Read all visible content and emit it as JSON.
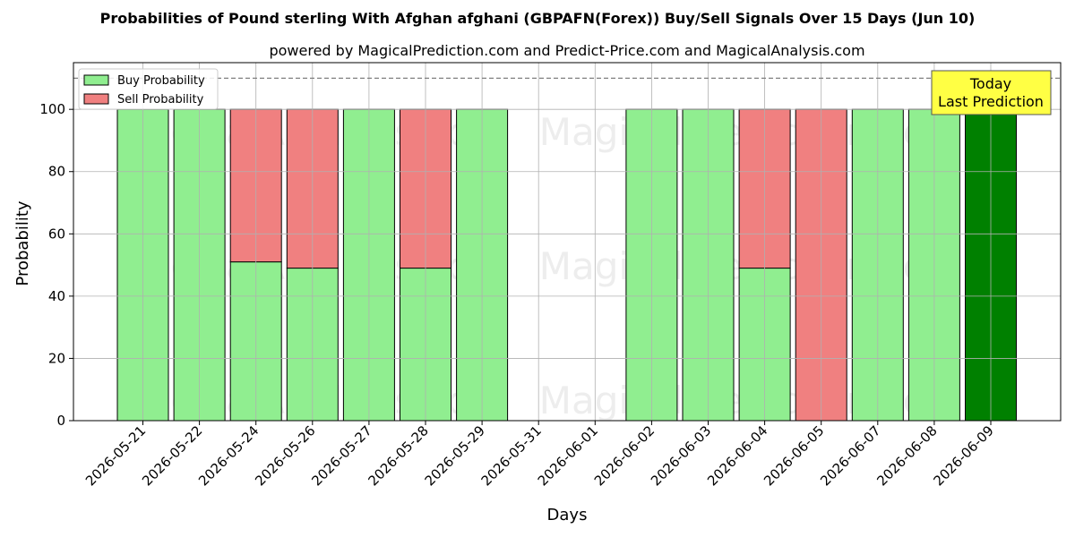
{
  "chart_data": {
    "type": "bar",
    "stacked": true,
    "title": "Probabilities of Pound sterling With Afghan afghani (GBPAFN(Forex)) Buy/Sell Signals Over 15 Days (Jun 10)",
    "subtitle": "powered by MagicalPrediction.com and Predict-Price.com and MagicalAnalysis.com",
    "xlabel": "Days",
    "ylabel": "Probability",
    "ylim": [
      0,
      115
    ],
    "yticks": [
      0,
      20,
      40,
      60,
      80,
      100
    ],
    "reference_line": 110,
    "grid": true,
    "legend_position": "top-left",
    "categories": [
      "2026-05-21",
      "2026-05-22",
      "2026-05-24",
      "2026-05-26",
      "2026-05-27",
      "2026-05-28",
      "2026-05-29",
      "2026-05-31",
      "2026-06-01",
      "2026-06-02",
      "2026-06-03",
      "2026-06-04",
      "2026-06-05",
      "2026-06-07",
      "2026-06-08",
      "2026-06-09"
    ],
    "series": [
      {
        "name": "Buy Probability",
        "color": "#90ee90",
        "values": [
          100,
          100,
          51,
          49,
          100,
          49,
          100,
          0,
          0,
          100,
          100,
          49,
          0,
          100,
          100,
          100
        ]
      },
      {
        "name": "Sell Probability",
        "color": "#f08080",
        "values": [
          0,
          0,
          49,
          51,
          0,
          51,
          0,
          0,
          0,
          0,
          0,
          51,
          100,
          0,
          0,
          0
        ]
      }
    ],
    "highlight": {
      "category": "2026-06-09",
      "color": "#008000"
    },
    "annotation": {
      "lines": [
        "Today",
        "Last Prediction"
      ],
      "color": "#ffff44"
    },
    "watermarks": [
      "MagicalAnalysis.com",
      "MagicalPrediction.com"
    ]
  }
}
